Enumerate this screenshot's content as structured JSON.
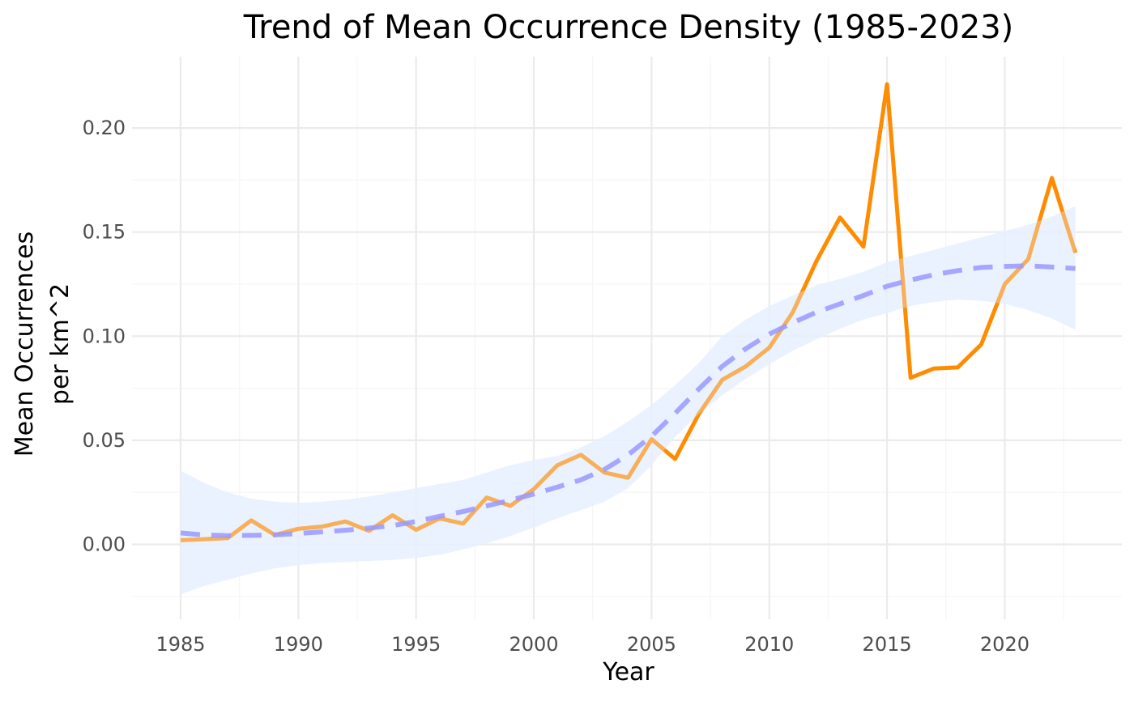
{
  "chart_data": {
    "type": "line",
    "title": "Trend of Mean Occurrence Density (1985-2023)",
    "xlabel": "Year",
    "ylabel_lines": [
      "Mean Occurrences",
      "per km^2"
    ],
    "xlim": [
      1985,
      2023
    ],
    "ylim": [
      -0.025,
      0.22
    ],
    "x_ticks": [
      1985,
      1990,
      1995,
      2000,
      2005,
      2010,
      2015,
      2020
    ],
    "y_ticks": [
      0.0,
      0.05,
      0.1,
      0.15,
      0.2
    ],
    "y_tick_labels": [
      "0.00",
      "0.05",
      "0.10",
      "0.15",
      "0.20"
    ],
    "grid": true,
    "colors": {
      "observed": "#ff8c00",
      "trend": "#9999ff",
      "band": "#e8f0ff"
    },
    "x": [
      1985,
      1986,
      1987,
      1988,
      1989,
      1990,
      1991,
      1992,
      1993,
      1994,
      1995,
      1996,
      1997,
      1998,
      1999,
      2000,
      2001,
      2002,
      2003,
      2004,
      2005,
      2006,
      2007,
      2008,
      2009,
      2010,
      2011,
      2012,
      2013,
      2014,
      2015,
      2016,
      2017,
      2018,
      2019,
      2020,
      2021,
      2022,
      2023
    ],
    "series": [
      {
        "role": "observed",
        "values": [
          0.002,
          0.0025,
          0.003,
          0.0115,
          0.0045,
          0.0075,
          0.0085,
          0.011,
          0.0065,
          0.014,
          0.007,
          0.0125,
          0.01,
          0.0225,
          0.0185,
          0.0265,
          0.038,
          0.043,
          0.0345,
          0.032,
          0.0505,
          0.041,
          0.0625,
          0.079,
          0.0855,
          0.0945,
          0.1115,
          0.136,
          0.157,
          0.143,
          0.221,
          0.08,
          0.0845,
          0.085,
          0.096,
          0.125,
          0.137,
          0.176,
          0.14
        ]
      },
      {
        "role": "trend",
        "values": [
          0.0055,
          0.0045,
          0.0042,
          0.0043,
          0.0046,
          0.0052,
          0.006,
          0.0068,
          0.0078,
          0.009,
          0.011,
          0.0135,
          0.0158,
          0.0185,
          0.0212,
          0.0242,
          0.0275,
          0.031,
          0.036,
          0.043,
          0.052,
          0.063,
          0.0745,
          0.0855,
          0.094,
          0.101,
          0.1065,
          0.1115,
          0.1155,
          0.1195,
          0.124,
          0.127,
          0.1295,
          0.1315,
          0.133,
          0.1335,
          0.1338,
          0.1332,
          0.1325
        ],
        "lower": [
          -0.024,
          -0.02,
          -0.017,
          -0.014,
          -0.0115,
          -0.01,
          -0.009,
          -0.0085,
          -0.008,
          -0.0075,
          -0.0065,
          -0.005,
          -0.0025,
          0.0005,
          0.004,
          0.008,
          0.0125,
          0.0165,
          0.0205,
          0.027,
          0.038,
          0.0515,
          0.0625,
          0.0715,
          0.0795,
          0.0865,
          0.093,
          0.0985,
          0.1035,
          0.108,
          0.111,
          0.1145,
          0.1165,
          0.1175,
          0.117,
          0.1155,
          0.1125,
          0.1085,
          0.103
        ],
        "upper": [
          0.0355,
          0.0295,
          0.025,
          0.022,
          0.0205,
          0.02,
          0.0205,
          0.0215,
          0.023,
          0.025,
          0.027,
          0.029,
          0.031,
          0.0345,
          0.038,
          0.0405,
          0.0425,
          0.0465,
          0.052,
          0.059,
          0.067,
          0.0765,
          0.087,
          0.1,
          0.108,
          0.1145,
          0.1195,
          0.1245,
          0.1275,
          0.131,
          0.1355,
          0.1385,
          0.1415,
          0.1445,
          0.1475,
          0.1505,
          0.1535,
          0.1575,
          0.1625
        ]
      }
    ]
  }
}
